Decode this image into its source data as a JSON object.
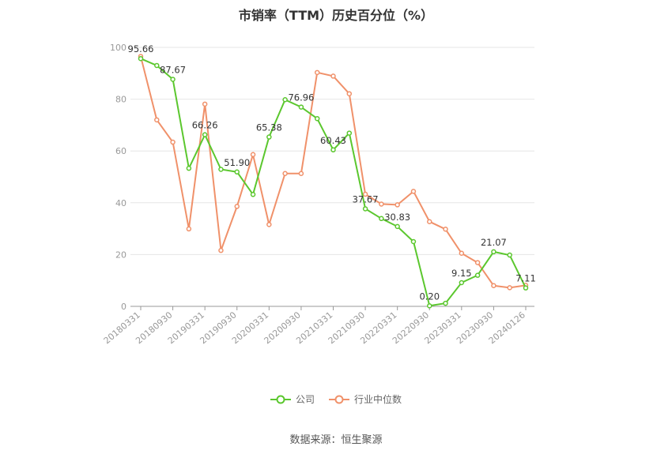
{
  "chart_data": {
    "type": "line",
    "title": "市销率（TTM）历史百分位（%）",
    "x": [
      "20180331",
      "20180630",
      "20180930",
      "20181231",
      "20190331",
      "20190630",
      "20190930",
      "20191231",
      "20200331",
      "20200630",
      "20200930",
      "20201231",
      "20210331",
      "20210630",
      "20210930",
      "20211231",
      "20220331",
      "20220630",
      "20220930",
      "20221231",
      "20230331",
      "20230630",
      "20230930",
      "20231231",
      "20240126"
    ],
    "x_tick_labels": [
      "20180331",
      "20180930",
      "20190331",
      "20190930",
      "20200331",
      "20200930",
      "20210331",
      "20210930",
      "20220331",
      "20220930",
      "20230331",
      "20230930",
      "20240126"
    ],
    "ylim": [
      0,
      100
    ],
    "y_ticks": [
      0,
      20,
      40,
      60,
      80,
      100
    ],
    "grid": true,
    "legend_position": "bottom",
    "series": [
      {
        "name": "公司",
        "color": "#5bc72e",
        "values": [
          95.66,
          93.0,
          87.67,
          53.3,
          66.26,
          52.9,
          51.9,
          43.2,
          65.38,
          79.8,
          76.96,
          72.5,
          60.43,
          66.9,
          37.67,
          33.9,
          30.83,
          25.0,
          0.2,
          1.2,
          9.15,
          12.0,
          21.07,
          19.8,
          7.11
        ],
        "labels": {
          "0": "95.66",
          "2": "87.67",
          "4": "66.26",
          "6": "51.90",
          "8": "65.38",
          "10": "76.96",
          "12": "60.43",
          "14": "37.67",
          "16": "30.83",
          "18": "0.20",
          "20": "9.15",
          "22": "21.07",
          "24": "7.11"
        }
      },
      {
        "name": "行业中位数",
        "color": "#f0916a",
        "values": [
          96.5,
          72.0,
          63.4,
          29.9,
          78.1,
          21.6,
          38.6,
          58.6,
          31.6,
          51.3,
          51.3,
          90.3,
          88.9,
          82.1,
          43.3,
          39.5,
          39.2,
          44.4,
          32.7,
          29.8,
          20.5,
          16.9,
          8.0,
          7.2,
          8.1
        ],
        "labels": {}
      }
    ]
  },
  "legend": {
    "company": "公司",
    "industry": "行业中位数"
  },
  "footer": {
    "source": "数据来源：恒生聚源"
  }
}
